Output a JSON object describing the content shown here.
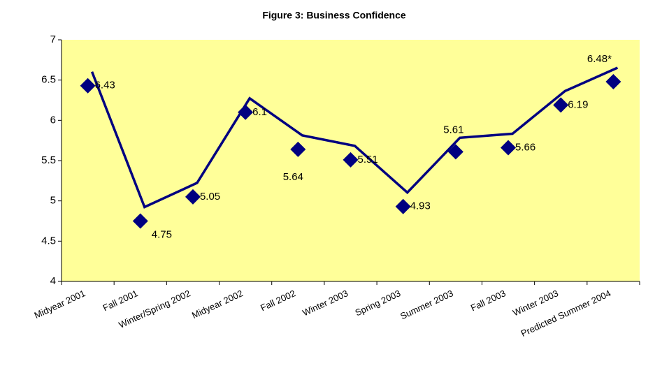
{
  "chart_data": {
    "type": "line",
    "title": "Figure 3: Business Confidence",
    "categories": [
      "Midyear 2001",
      "Fall 2001",
      "Winter/Spring 2002",
      "Midyear 2002",
      "Fall 2002",
      "Winter 2003",
      "Spring 2003",
      "Summer 2003",
      "Fall 2003",
      "Winter 2003",
      "Predicted Summer 2004"
    ],
    "values": [
      6.43,
      4.75,
      5.05,
      6.1,
      5.64,
      5.51,
      4.93,
      5.61,
      5.66,
      6.19,
      6.48
    ],
    "value_labels": [
      "6.43",
      "4.75",
      "5.05",
      "6.1",
      "5.64",
      "5.51",
      "4.93",
      "5.61",
      "5.66",
      "6.19",
      "6.48*"
    ],
    "color": "#000080",
    "ylim": [
      4,
      7
    ],
    "yticks": [
      4,
      4.5,
      5,
      5.5,
      6,
      6.5,
      7
    ],
    "grid": false
  }
}
